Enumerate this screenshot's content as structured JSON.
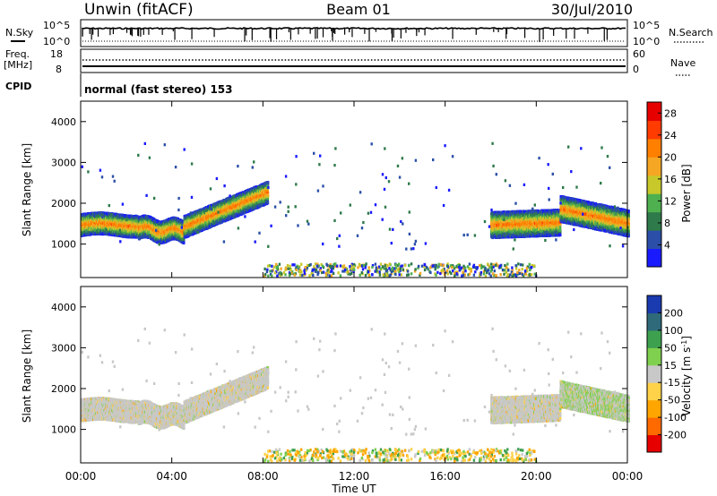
{
  "header": {
    "station": "Unwin (fitACF)",
    "beam": "Beam 01",
    "date": "30/Jul/2010"
  },
  "top_panels": {
    "nsky_label": "N.Sky",
    "nsearch_label": "N.Search",
    "log_hi": "10^5",
    "log_lo": "10^0",
    "freq_label": "Freq.",
    "freq_unit": "[MHz]",
    "freq_ticks": [
      "18",
      "8"
    ],
    "nave_label": "Nave",
    "nave_ticks": [
      "60",
      "0"
    ],
    "cpid_label": "CPID",
    "cpid_text": "normal (fast stereo) 153"
  },
  "colors": {
    "power_scale": [
      "#1a1aff",
      "#2b4fa8",
      "#2e7a4a",
      "#4fb04f",
      "#c8c82a",
      "#f5a623",
      "#ff7f00",
      "#ff3b00",
      "#e60000"
    ],
    "velocity_scale": [
      "#e60000",
      "#ff6a00",
      "#ffa500",
      "#ffd24a",
      "#c8c8c8",
      "#7fd04f",
      "#3da04f",
      "#2e6a7a",
      "#1a3ab0"
    ]
  },
  "chart_data": [
    {
      "type": "heatmap",
      "title": "",
      "xlabel": "",
      "ylabel": "Slant Range [km]",
      "x_range_hours": [
        0,
        24
      ],
      "xticks": [
        "00:00",
        "04:00",
        "08:00",
        "12:00",
        "16:00",
        "20:00",
        "00:00"
      ],
      "ylim": [
        180,
        4500
      ],
      "yticks": [
        1000,
        2000,
        3000,
        4000
      ],
      "colorbar": {
        "label": "Power [dB]",
        "ticks": [
          "4",
          "8",
          "12",
          "16",
          "20",
          "24",
          "28"
        ],
        "range": [
          0,
          30
        ]
      }
    },
    {
      "type": "heatmap",
      "title": "",
      "xlabel": "Time UT",
      "ylabel": "Slant Range [km]",
      "x_range_hours": [
        0,
        24
      ],
      "xticks": [
        "00:00",
        "04:00",
        "08:00",
        "12:00",
        "16:00",
        "20:00",
        "00:00"
      ],
      "ylim": [
        180,
        4500
      ],
      "yticks": [
        1000,
        2000,
        3000,
        4000
      ],
      "colorbar": {
        "label": "Velocity [m s^-1]",
        "ticks": [
          "200",
          "100",
          "50",
          "15",
          "-15",
          "-50",
          "-100",
          "-200"
        ]
      }
    }
  ]
}
